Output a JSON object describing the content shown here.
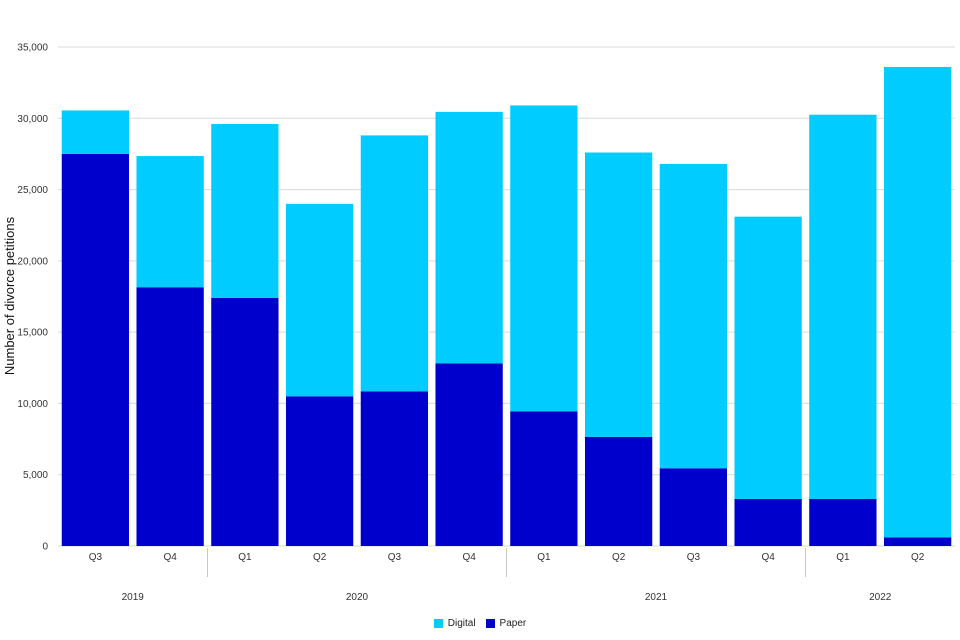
{
  "chart_data": {
    "type": "bar",
    "stacked": true,
    "title": "",
    "xlabel": "",
    "ylabel": "Number of divorce petitions",
    "ylim": [
      0,
      35000
    ],
    "yticks": [
      0,
      5000,
      10000,
      15000,
      20000,
      25000,
      30000,
      35000
    ],
    "ytick_labels": [
      "0",
      "5,000",
      "10,000",
      "15,000",
      "20,000",
      "25,000",
      "30,000",
      "35,000"
    ],
    "grid": true,
    "legend_position": "bottom-center",
    "categories": [
      "Q3",
      "Q4",
      "Q1",
      "Q2",
      "Q3",
      "Q4",
      "Q1",
      "Q2",
      "Q3",
      "Q4",
      "Q1",
      "Q2"
    ],
    "groups": [
      {
        "label": "2019",
        "count": 2
      },
      {
        "label": "2020",
        "count": 4
      },
      {
        "label": "2021",
        "count": 4
      },
      {
        "label": "2022",
        "count": 2
      }
    ],
    "series": [
      {
        "name": "Paper",
        "color": "#0000CC",
        "values": [
          27500,
          18150,
          17400,
          10500,
          10850,
          12800,
          9450,
          7650,
          5450,
          3300,
          3300,
          600
        ]
      },
      {
        "name": "Digital",
        "color": "#00CCFF",
        "values": [
          3050,
          9200,
          12200,
          13500,
          17950,
          17650,
          21450,
          19950,
          21350,
          19800,
          26950,
          33000
        ]
      }
    ],
    "legend": [
      {
        "name": "Digital",
        "color": "#00CCFF"
      },
      {
        "name": "Paper",
        "color": "#0000CC"
      }
    ]
  }
}
